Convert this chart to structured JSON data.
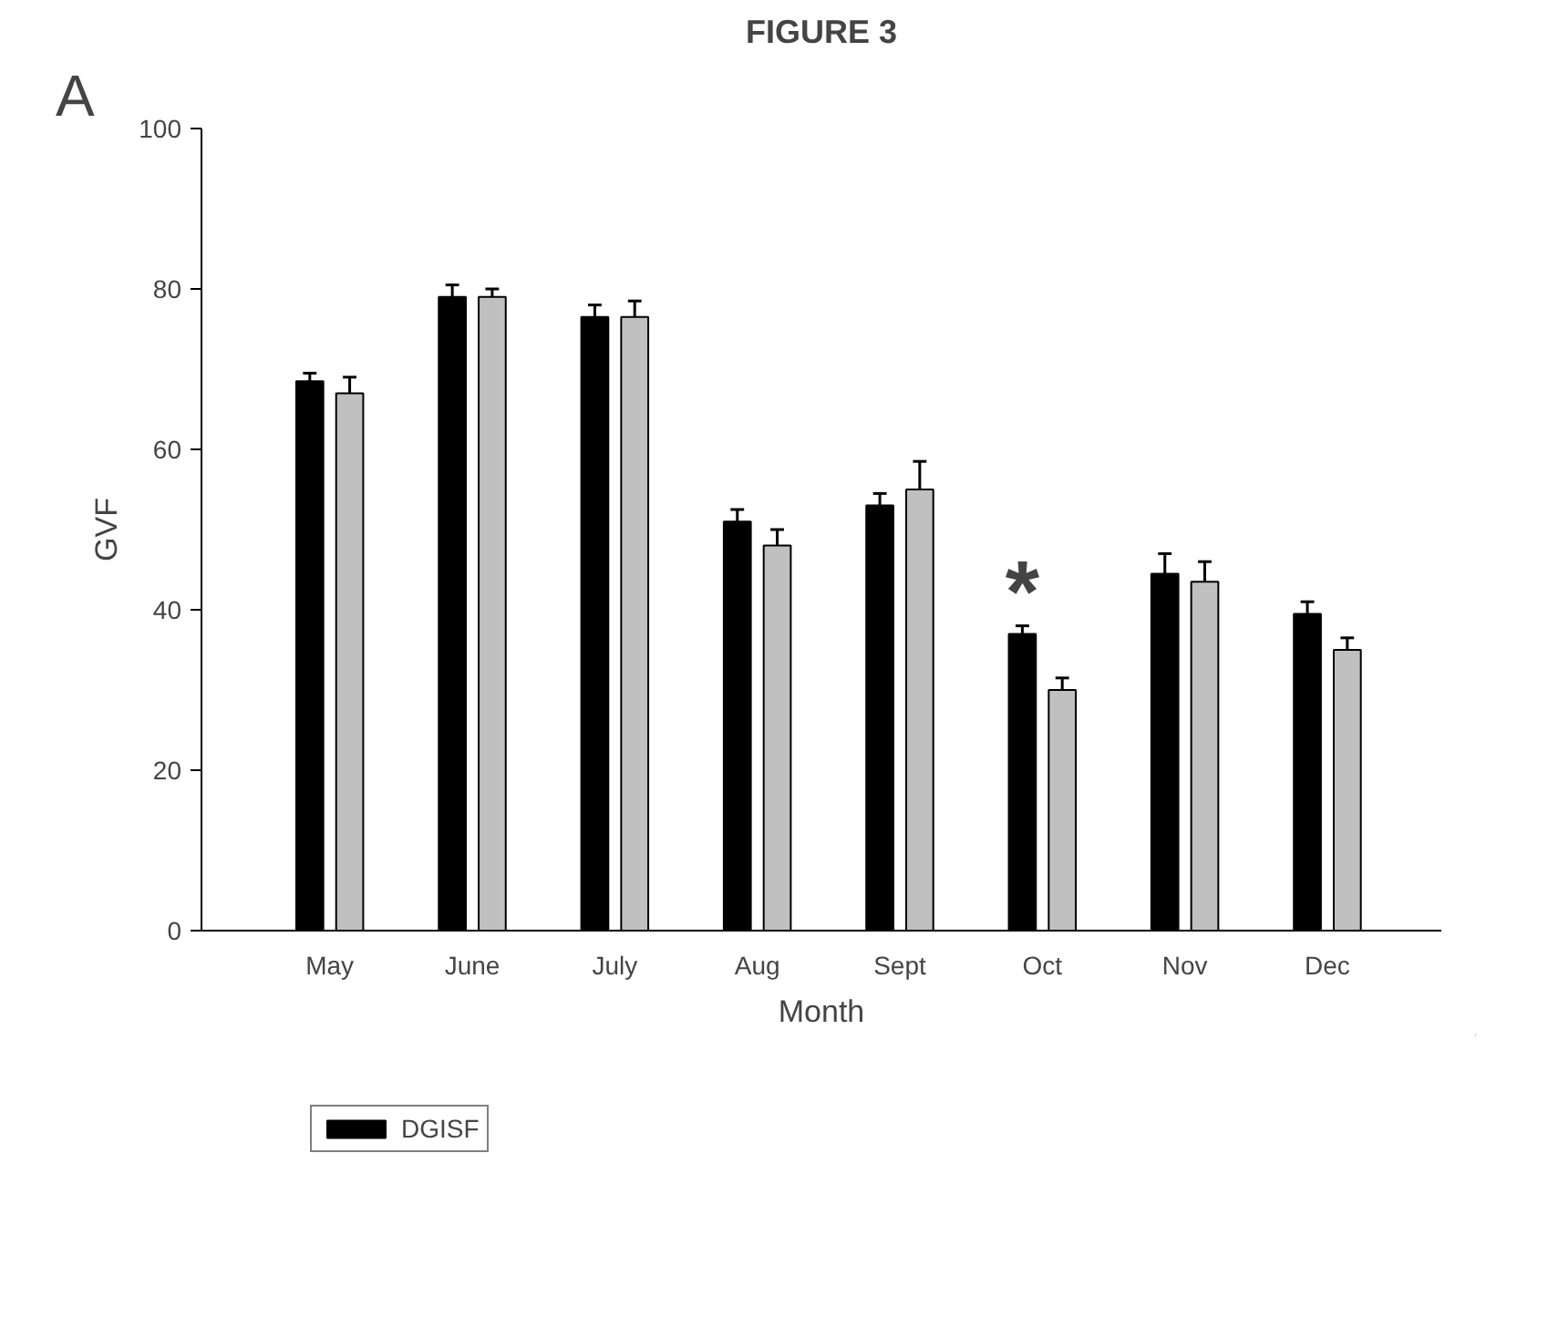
{
  "chart_data": {
    "type": "bar",
    "title": "FIGURE 3",
    "xlabel": "Month",
    "ylabel": "GVF",
    "categories": [
      "May",
      "June",
      "July",
      "Aug",
      "Sept",
      "Oct",
      "Nov",
      "Dec"
    ],
    "series": [
      {
        "name": "DGISF",
        "color": "#000000",
        "values": [
          68.5,
          79,
          76.5,
          51,
          53,
          37,
          44.5,
          39.5
        ],
        "errors": [
          1,
          1.5,
          1.5,
          1.5,
          1.5,
          1,
          2.5,
          1.5
        ]
      },
      {
        "color": "#c0c0c0",
        "values": [
          67,
          79,
          76.5,
          48,
          55,
          30,
          43.5,
          35
        ],
        "errors": [
          2,
          1,
          2,
          2,
          3.5,
          1.5,
          2.5,
          1.5
        ]
      }
    ],
    "ylim": [
      0,
      100
    ],
    "yticks": [
      0,
      20,
      40,
      60,
      80,
      100
    ],
    "grid": false,
    "legend": "bottom left",
    "annotations": [
      "A",
      {
        "text": "*",
        "x": "Oct",
        "y": 37
      }
    ]
  }
}
